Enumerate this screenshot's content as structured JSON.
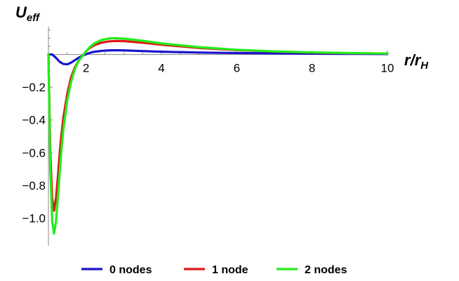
{
  "chart_data": {
    "type": "line",
    "ylabel": {
      "main": "U",
      "sub": "eff"
    },
    "xlabel": {
      "a": "r",
      "slash": "/",
      "b": "r",
      "sub": "H"
    },
    "xlim": [
      1,
      10
    ],
    "ylim": [
      -1.17,
      0.17
    ],
    "x_ticks": [
      2,
      4,
      6,
      8,
      10
    ],
    "x_tick_labels": [
      "2",
      "4",
      "6",
      "8",
      "10"
    ],
    "y_ticks": [
      -0.2,
      -0.4,
      -0.6,
      -0.8,
      -1.0
    ],
    "y_tick_labels": [
      "−0.2",
      "−0.4",
      "−0.6",
      "−0.8",
      "−1.0"
    ],
    "grid": false,
    "legend_position": "bottom",
    "series": [
      {
        "name": "0 nodes",
        "color": "#1a14cc",
        "x": [
          1.0,
          1.1,
          1.2,
          1.3,
          1.4,
          1.5,
          1.6,
          1.7,
          1.8,
          1.9,
          2.0,
          2.1,
          2.2,
          2.4,
          2.6,
          2.8,
          3.0,
          3.5,
          4.0,
          5.0,
          6.0,
          7.0,
          8.0,
          9.0,
          10.0
        ],
        "y": [
          0.0,
          0.0,
          -0.02,
          -0.045,
          -0.058,
          -0.06,
          -0.05,
          -0.035,
          -0.02,
          -0.008,
          0.002,
          0.01,
          0.016,
          0.022,
          0.025,
          0.026,
          0.025,
          0.021,
          0.017,
          0.012,
          0.009,
          0.007,
          0.005,
          0.004,
          0.003
        ]
      },
      {
        "name": "1 node",
        "color": "#dd1a14",
        "x": [
          1.0,
          1.05,
          1.1,
          1.15,
          1.2,
          1.25,
          1.3,
          1.35,
          1.4,
          1.5,
          1.6,
          1.7,
          1.8,
          1.9,
          2.0,
          2.1,
          2.2,
          2.4,
          2.6,
          2.8,
          3.0,
          3.5,
          4.0,
          5.0,
          6.0,
          7.0,
          8.0,
          9.0,
          10.0
        ],
        "y": [
          0.0,
          -0.6,
          -0.88,
          -0.955,
          -0.88,
          -0.75,
          -0.6,
          -0.48,
          -0.38,
          -0.24,
          -0.14,
          -0.08,
          -0.04,
          -0.01,
          0.02,
          0.04,
          0.055,
          0.072,
          0.08,
          0.083,
          0.082,
          0.072,
          0.06,
          0.04,
          0.027,
          0.018,
          0.012,
          0.008,
          0.006
        ]
      },
      {
        "name": "2 nodes",
        "color": "#22ee1a",
        "x": [
          1.0,
          1.05,
          1.1,
          1.15,
          1.2,
          1.25,
          1.3,
          1.35,
          1.4,
          1.5,
          1.6,
          1.7,
          1.8,
          1.9,
          2.0,
          2.1,
          2.2,
          2.4,
          2.6,
          2.8,
          3.0,
          3.5,
          4.0,
          5.0,
          6.0,
          7.0,
          8.0,
          9.0,
          10.0
        ],
        "y": [
          0.0,
          -0.7,
          -1.02,
          -1.095,
          -1.02,
          -0.88,
          -0.72,
          -0.57,
          -0.45,
          -0.28,
          -0.17,
          -0.09,
          -0.04,
          -0.01,
          0.02,
          0.045,
          0.065,
          0.088,
          0.098,
          0.1,
          0.097,
          0.084,
          0.068,
          0.045,
          0.029,
          0.019,
          0.013,
          0.009,
          0.006
        ]
      }
    ]
  }
}
